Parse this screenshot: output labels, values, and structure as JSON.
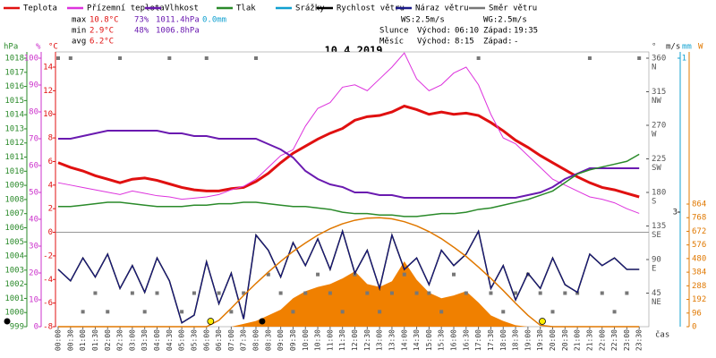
{
  "chart_data": {
    "type": "line",
    "title": "10.4.2019",
    "x_label": "čas",
    "x": [
      "00:00",
      "00:30",
      "01:00",
      "01:30",
      "02:00",
      "02:30",
      "03:00",
      "03:30",
      "04:00",
      "04:30",
      "05:00",
      "05:30",
      "06:00",
      "06:30",
      "07:00",
      "07:30",
      "08:00",
      "08:30",
      "09:00",
      "09:30",
      "10:00",
      "10:30",
      "11:00",
      "11:30",
      "12:00",
      "12:30",
      "13:00",
      "13:30",
      "14:00",
      "14:30",
      "15:00",
      "15:30",
      "16:00",
      "16:30",
      "17:00",
      "17:30",
      "18:00",
      "18:30",
      "19:00",
      "19:30",
      "20:00",
      "20:30",
      "21:00",
      "21:30",
      "22:00",
      "22:30",
      "23:00",
      "23:30"
    ],
    "axes": {
      "hpa": {
        "label": "hPa",
        "color": "#2a8a2a",
        "ylim": [
          999,
          1018
        ],
        "yticks": [
          999,
          1000,
          1001,
          1002,
          1003,
          1004,
          1005,
          1006,
          1007,
          1008,
          1009,
          1010,
          1011,
          1012,
          1013,
          1014,
          1015,
          1016,
          1017,
          1018
        ]
      },
      "pct": {
        "label": "%",
        "color": "#cc33cc",
        "ylim": [
          0,
          100
        ],
        "yticks": [
          0,
          10,
          20,
          30,
          40,
          50,
          60,
          70,
          80,
          90,
          100
        ]
      },
      "temp": {
        "label": "°C",
        "color": "#e01010",
        "ylim": [
          -8,
          14
        ],
        "yticks": [
          -8,
          -6,
          -4,
          -2,
          0,
          2,
          4,
          6,
          8,
          10,
          12,
          14
        ],
        "gridlines": [
          0
        ]
      },
      "dir": {
        "label": "°",
        "color": "#555555",
        "ylim": [
          0,
          360
        ],
        "yticks": [
          45,
          90,
          135,
          180,
          225,
          270,
          315,
          360
        ],
        "tick_names": [
          "NE",
          "E",
          "SE",
          "S",
          "SW",
          "W",
          "NW",
          "N"
        ]
      },
      "wind": {
        "label": "m/s",
        "color": "#222222",
        "ylim": [
          0,
          3
        ],
        "yticks": [
          3
        ]
      },
      "rain": {
        "label": "mm",
        "color": "#10a0d0",
        "ylim": [
          0,
          1
        ],
        "yticks": [
          1
        ]
      },
      "solar": {
        "label": "W",
        "color": "#e07800",
        "ylim": [
          0,
          864
        ],
        "yticks": [
          0,
          96,
          192,
          288,
          384,
          480,
          576,
          672,
          768,
          864
        ]
      }
    },
    "series": [
      {
        "name": "Teplota",
        "color": "#e01010",
        "axis": "temp",
        "kind": "line",
        "width": 3,
        "values": [
          5.9,
          5.5,
          5.2,
          4.8,
          4.5,
          4.2,
          4.5,
          4.6,
          4.4,
          4.1,
          3.8,
          3.6,
          3.5,
          3.5,
          3.7,
          3.8,
          4.3,
          5.0,
          5.9,
          6.7,
          7.3,
          7.9,
          8.4,
          8.8,
          9.5,
          9.8,
          9.9,
          10.2,
          10.7,
          10.4,
          10.0,
          10.2,
          10.0,
          10.1,
          9.9,
          9.3,
          8.6,
          7.8,
          7.2,
          6.5,
          5.9,
          5.3,
          4.7,
          4.2,
          3.8,
          3.6,
          3.3,
          3.0
        ]
      },
      {
        "name": "Přízemní teplota",
        "color": "#dd33dd",
        "axis": "temp",
        "kind": "line",
        "width": 1,
        "values": [
          4.2,
          4.0,
          3.8,
          3.6,
          3.4,
          3.2,
          3.5,
          3.3,
          3.1,
          3.0,
          2.8,
          2.9,
          3.0,
          3.2,
          3.6,
          3.9,
          4.5,
          5.5,
          6.5,
          7.0,
          9.0,
          10.5,
          11.0,
          12.3,
          12.5,
          12.0,
          13.0,
          14.0,
          15.2,
          13.0,
          12.0,
          12.5,
          13.5,
          14.0,
          12.5,
          10.0,
          8.0,
          7.5,
          6.5,
          5.5,
          4.5,
          4.0,
          3.5,
          3.0,
          2.8,
          2.5,
          2.0,
          1.6
        ]
      },
      {
        "name": "Vlhkost",
        "color": "#6a1ab0",
        "axis": "pct",
        "kind": "line",
        "width": 2,
        "values": [
          70,
          70,
          71,
          72,
          73,
          73,
          73,
          73,
          73,
          72,
          72,
          71,
          71,
          70,
          70,
          70,
          70,
          68,
          66,
          63,
          58,
          55,
          53,
          52,
          50,
          50,
          49,
          49,
          48,
          48,
          48,
          48,
          48,
          48,
          48,
          48,
          48,
          48,
          49,
          50,
          52,
          55,
          57,
          59,
          59,
          59,
          59,
          59
        ]
      },
      {
        "name": "Tlak",
        "color": "#2a8a2a",
        "axis": "hpa",
        "kind": "line",
        "width": 1.5,
        "values": [
          1007.5,
          1007.5,
          1007.6,
          1007.7,
          1007.8,
          1007.8,
          1007.7,
          1007.6,
          1007.5,
          1007.5,
          1007.5,
          1007.6,
          1007.6,
          1007.7,
          1007.7,
          1007.8,
          1007.8,
          1007.7,
          1007.6,
          1007.5,
          1007.5,
          1007.4,
          1007.3,
          1007.1,
          1007.0,
          1007.0,
          1006.9,
          1006.9,
          1006.8,
          1006.8,
          1006.9,
          1007.0,
          1007.0,
          1007.1,
          1007.3,
          1007.4,
          1007.6,
          1007.8,
          1008.0,
          1008.3,
          1008.6,
          1009.2,
          1009.8,
          1010.1,
          1010.3,
          1010.5,
          1010.7,
          1011.2
        ]
      },
      {
        "name": "Srážky",
        "color": "#10a0d0",
        "axis": "rain",
        "kind": "bars",
        "values": [
          0,
          0,
          0,
          0,
          0,
          0,
          0,
          0,
          0,
          0,
          0,
          0,
          0,
          0,
          0,
          0,
          0,
          0,
          0,
          0,
          0,
          0,
          0,
          0,
          0,
          0,
          0,
          0,
          0,
          0,
          0,
          0,
          0,
          0,
          0,
          0,
          0,
          0,
          0,
          0,
          0,
          0,
          0,
          0,
          0,
          0,
          0,
          0
        ]
      },
      {
        "name": "Rychlost větru",
        "color": "#000000",
        "axis": "wind",
        "kind": "line",
        "width": 1.5,
        "values": [
          1.5,
          1.2,
          1.8,
          1.3,
          1.9,
          1.0,
          1.6,
          0.9,
          1.8,
          1.2,
          0.1,
          0.3,
          1.7,
          0.6,
          1.4,
          0.2,
          2.4,
          2.0,
          1.3,
          2.2,
          1.6,
          2.3,
          1.5,
          2.5,
          1.4,
          2.0,
          1.0,
          2.4,
          1.5,
          1.8,
          1.1,
          2.0,
          1.6,
          1.9,
          2.5,
          1.0,
          1.6,
          0.7,
          1.4,
          1.0,
          1.8,
          1.1,
          0.9,
          1.9,
          1.6,
          1.8,
          1.5,
          1.5
        ]
      },
      {
        "name": "Náraz větru",
        "color": "#1a1a8a",
        "axis": "wind",
        "kind": "line",
        "width": 1,
        "values": [
          1.5,
          1.2,
          1.8,
          1.3,
          1.9,
          1.0,
          1.6,
          0.9,
          1.8,
          1.2,
          0.1,
          0.3,
          1.7,
          0.6,
          1.4,
          0.2,
          2.4,
          2.0,
          1.3,
          2.2,
          1.6,
          2.3,
          1.5,
          2.5,
          1.4,
          2.0,
          1.0,
          2.4,
          1.5,
          1.8,
          1.1,
          2.0,
          1.6,
          1.9,
          2.5,
          1.0,
          1.6,
          0.7,
          1.4,
          1.0,
          1.8,
          1.1,
          0.9,
          1.9,
          1.6,
          1.8,
          1.5,
          1.5
        ]
      },
      {
        "name": "Směr větru",
        "color": "#777777",
        "axis": "dir",
        "kind": "points",
        "values": [
          360,
          360,
          20,
          45,
          20,
          360,
          45,
          20,
          45,
          360,
          20,
          45,
          360,
          45,
          20,
          45,
          360,
          70,
          45,
          20,
          45,
          70,
          45,
          20,
          70,
          45,
          20,
          45,
          70,
          45,
          45,
          20,
          70,
          45,
          360,
          45,
          20,
          45,
          70,
          45,
          20,
          45,
          45,
          360,
          45,
          20,
          45,
          360
        ]
      },
      {
        "color": "#f08000",
        "axis": "solar",
        "kind": "area",
        "values": [
          0,
          0,
          0,
          0,
          0,
          0,
          0,
          0,
          0,
          0,
          0,
          0,
          0,
          0,
          0,
          20,
          40,
          80,
          120,
          200,
          250,
          280,
          300,
          340,
          390,
          300,
          280,
          320,
          460,
          330,
          240,
          200,
          220,
          250,
          170,
          80,
          40,
          10,
          0,
          0,
          0,
          0,
          0,
          0,
          0,
          0,
          0,
          0
        ]
      },
      {
        "color": "#e07800",
        "axis": "solar",
        "kind": "line",
        "width": 1.5,
        "values": [
          0,
          0,
          0,
          0,
          0,
          0,
          0,
          0,
          0,
          0,
          0,
          0,
          0,
          45,
          130,
          220,
          305,
          385,
          460,
          530,
          590,
          645,
          690,
          725,
          750,
          765,
          768,
          760,
          740,
          710,
          670,
          620,
          560,
          495,
          420,
          340,
          255,
          165,
          80,
          10,
          0,
          0,
          0,
          0,
          0,
          0,
          0,
          0
        ]
      }
    ],
    "stats": [
      {
        "label": "max",
        "temp": "10.8°C",
        "hum": "73%",
        "press": "1011.4hPa",
        "rain": "0.0mm"
      },
      {
        "label": "min",
        "temp": "2.9°C",
        "hum": "48%",
        "press": "1006.8hPa"
      },
      {
        "label": "avg",
        "temp": "6.2°C"
      }
    ],
    "ws": "WS:2.5m/s",
    "wg": "WG:2.5m/s",
    "sun": {
      "label": "Slunce",
      "rise_label": "Východ:",
      "rise": "06:10",
      "set_label": "Západ:",
      "set": "19:35"
    },
    "moon": {
      "label": "Měsíc",
      "rise_label": "Východ:",
      "rise": "8:15",
      "set_label": "Západ:",
      "set": "-"
    }
  }
}
